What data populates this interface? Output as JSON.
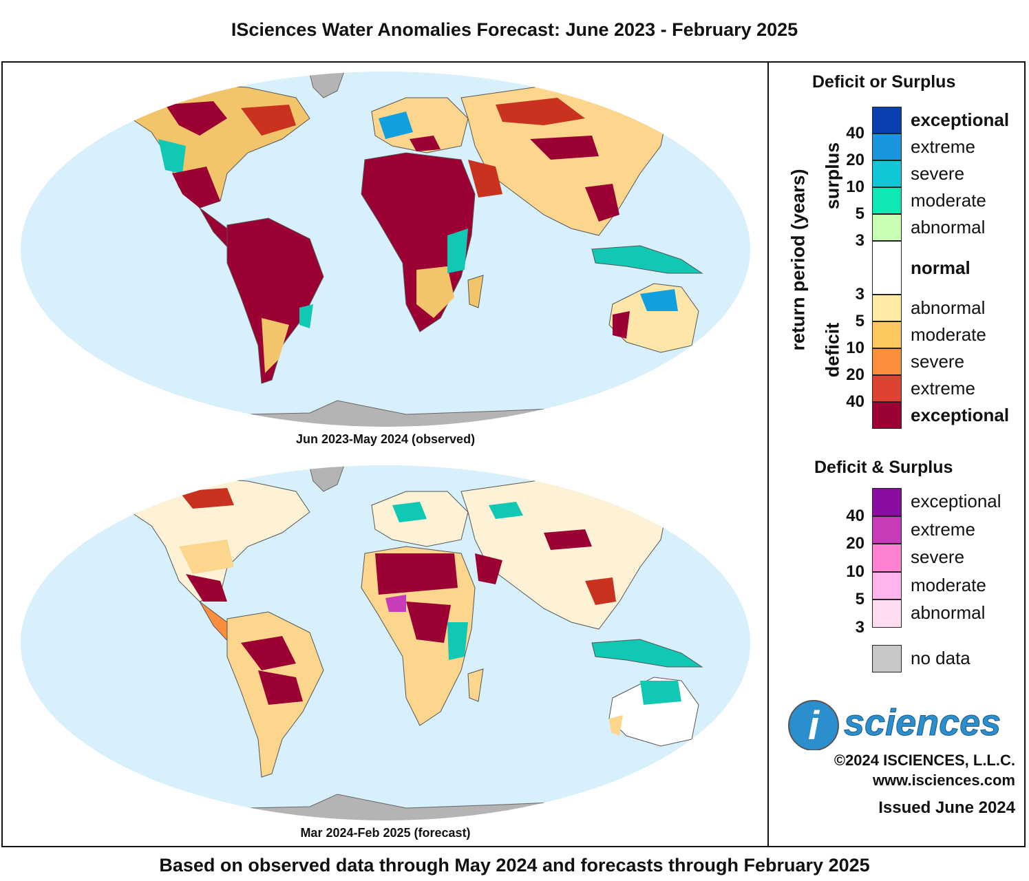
{
  "title": "ISciences Water Anomalies Forecast: June 2023 - February 2025",
  "footer": "Based on observed data through May 2024 and forecasts through February 2025",
  "maps": [
    {
      "caption": "Jun 2023-May 2024 (observed)"
    },
    {
      "caption": "Mar 2024-Feb 2025 (forecast)"
    }
  ],
  "legend": {
    "deficit_or_surplus": {
      "heading": "Deficit or Surplus",
      "axis_label": "return period (years)",
      "surplus_label": "surplus",
      "deficit_label": "deficit",
      "surplus_classes": [
        {
          "label": "exceptional",
          "color": "#0a3fb0"
        },
        {
          "label": "extreme",
          "color": "#1a96e0"
        },
        {
          "label": "severe",
          "color": "#0fc7d6"
        },
        {
          "label": "moderate",
          "color": "#10e8b4"
        },
        {
          "label": "abnormal",
          "color": "#c8ffb4"
        }
      ],
      "normal_class": {
        "label": "normal",
        "color": "#ffffff"
      },
      "deficit_classes": [
        {
          "label": "abnormal",
          "color": "#ffeba4"
        },
        {
          "label": "moderate",
          "color": "#fdc760"
        },
        {
          "label": "severe",
          "color": "#fb8e3c"
        },
        {
          "label": "extreme",
          "color": "#dd4232"
        },
        {
          "label": "exceptional",
          "color": "#9b0133"
        }
      ],
      "surplus_return_periods": [
        "40",
        "20",
        "10",
        "5",
        "3"
      ],
      "deficit_return_periods": [
        "3",
        "5",
        "10",
        "20",
        "40"
      ]
    },
    "deficit_and_surplus": {
      "heading": "Deficit & Surplus",
      "classes": [
        {
          "label": "exceptional",
          "color": "#8a0ca0"
        },
        {
          "label": "extreme",
          "color": "#c83cb9"
        },
        {
          "label": "severe",
          "color": "#ff82d2"
        },
        {
          "label": "moderate",
          "color": "#ffb4eb"
        },
        {
          "label": "abnormal",
          "color": "#ffdcf0"
        }
      ],
      "return_periods": [
        "40",
        "20",
        "10",
        "5",
        "3"
      ]
    },
    "no_data": {
      "label": "no data",
      "color": "#c8c8c8"
    }
  },
  "brand": {
    "logo_text": "sciences",
    "logo_letter": "i",
    "copyright": "©2024 ISCIENCES, L.L.C.",
    "website": "www.isciences.com",
    "issued": "Issued June 2024"
  }
}
